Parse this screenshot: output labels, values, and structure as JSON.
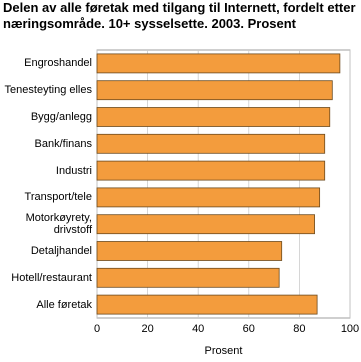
{
  "chart_data": {
    "type": "bar",
    "orientation": "horizontal",
    "title": "Delen av alle føretak med tilgang til Internett, fordelt etter næringsområde. 10+ sysselsette. 2003. Prosent",
    "categories": [
      "Engroshandel",
      "Tenesteyting elles",
      "Bygg/anlegg",
      "Bank/finans",
      "Industri",
      "Transport/tele",
      "Motorkøyrety, drivstoff",
      "Detaljhandel",
      "Hotell/restaurant",
      "Alle føretak"
    ],
    "values": [
      96,
      93,
      92,
      90,
      90,
      88,
      86,
      73,
      72,
      87
    ],
    "color": "#f39c3d",
    "xlim": [
      0,
      100
    ],
    "xticks": [
      0,
      20,
      40,
      60,
      80,
      100
    ],
    "xlabel": "Prosent",
    "grid": true
  }
}
